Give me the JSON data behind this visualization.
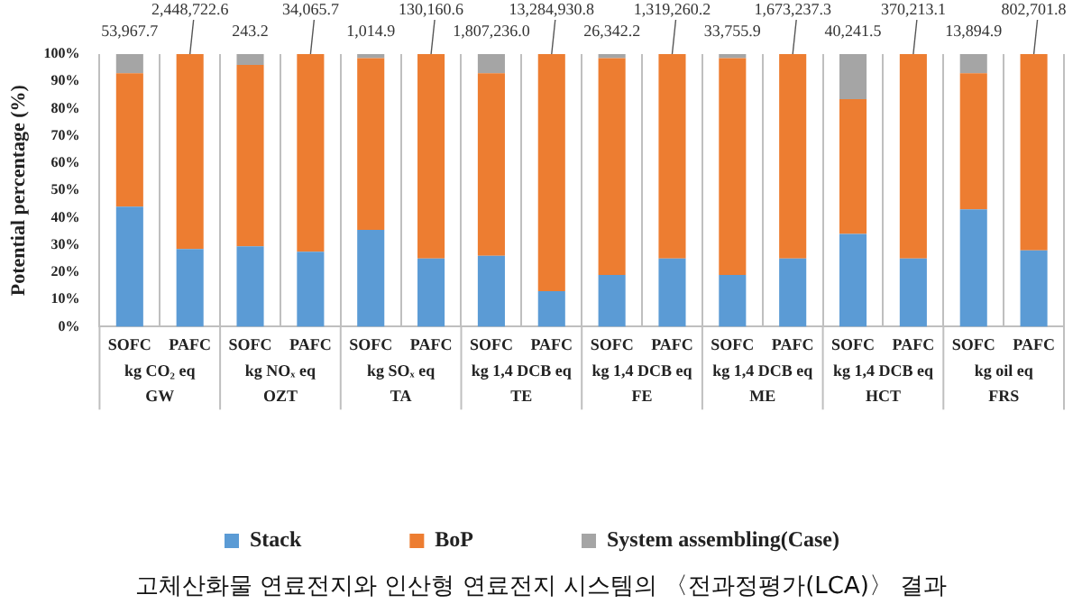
{
  "chart_data": {
    "type": "bar",
    "stacked": true,
    "ylabel": "Potential percentage (%)",
    "categories": [
      "SOFC",
      "PAFC",
      "SOFC",
      "PAFC",
      "SOFC",
      "PAFC",
      "SOFC",
      "PAFC",
      "SOFC",
      "PAFC",
      "SOFC",
      "PAFC",
      "SOFC",
      "PAFC",
      "SOFC",
      "PAFC"
    ],
    "series": [
      {
        "name": "Stack",
        "color": "#5b9bd5",
        "values": [
          44,
          28.5,
          29.5,
          27.5,
          35.5,
          25,
          26,
          13,
          19,
          25,
          19,
          25,
          34,
          25,
          43,
          28
        ]
      },
      {
        "name": "BoP",
        "color": "#ed7d31",
        "values": [
          49,
          71.5,
          66.5,
          72.5,
          63,
          75,
          67,
          87,
          79.5,
          75,
          79.5,
          75,
          49.5,
          75,
          50,
          72
        ]
      },
      {
        "name": "System assembling(Case)",
        "color": "#a5a5a5",
        "values": [
          7,
          0,
          4,
          0,
          1.5,
          0,
          7,
          0,
          1.5,
          0,
          1.5,
          0,
          16.5,
          0,
          7,
          0
        ]
      }
    ],
    "ylim": [
      0,
      100
    ],
    "yticks": [
      {
        "value": 0,
        "label": "0%"
      },
      {
        "value": 10,
        "label": "10%"
      },
      {
        "value": 20,
        "label": "20%"
      },
      {
        "value": 30,
        "label": "30%"
      },
      {
        "value": 40,
        "label": "40%"
      },
      {
        "value": 50,
        "label": "50%"
      },
      {
        "value": 60,
        "label": "60%"
      },
      {
        "value": 70,
        "label": "70%"
      },
      {
        "value": 80,
        "label": "80%"
      },
      {
        "value": 90,
        "label": "90%"
      },
      {
        "value": 100,
        "label": "100%"
      }
    ],
    "grid": "x",
    "legend": "bottom",
    "annotations": [
      "53,967.7",
      "2,448,722.6",
      "243.2",
      "34,065.7",
      "1,014.9",
      "130,160.6",
      "1,807,236.0",
      "13,284,930.8",
      "26,342.2",
      "1,319,260.2",
      "33,755.9",
      "1,673,237.3",
      "40,241.5",
      "370,213.1",
      "13,894.9",
      "802,701.8",
      "kg CO₂ eq",
      "GW",
      "kg NOₓ eq",
      "OZT",
      "kg SOₓ eq",
      "TA",
      "kg 1,4 DCB eq",
      "TE",
      "kg 1,4 DCB eq",
      "FE",
      "kg 1,4 DCB eq",
      "ME",
      "kg 1,4 DCB eq",
      "HCT",
      "kg oil eq",
      "FRS",
      "고체산화물 연료전지와 인산형 연료전지 시스템의 〈전과정평가(LCA)〉 결과"
    ]
  }
}
